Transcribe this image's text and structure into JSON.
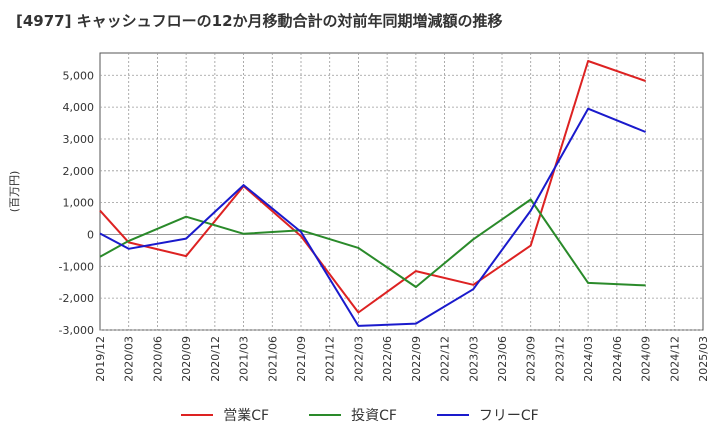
{
  "chart_data": {
    "type": "line",
    "title": "[4977]  キャッシュフローの12か月移動合計の対前年同期増減額の推移",
    "ylabel": "(百万円)",
    "xlabel": "",
    "x": [
      "2019/12",
      "2020/03",
      "2020/06",
      "2020/09",
      "2020/12",
      "2021/03",
      "2021/06",
      "2021/09",
      "2021/12",
      "2022/03",
      "2022/06",
      "2022/09",
      "2022/12",
      "2023/03",
      "2023/06",
      "2023/09",
      "2023/12",
      "2024/03",
      "2024/06",
      "2024/09",
      "2024/12",
      "2025/03"
    ],
    "ylim": [
      -3000,
      5700
    ],
    "yticks": [
      -3000,
      -2000,
      -1000,
      0,
      1000,
      2000,
      3000,
      4000,
      5000
    ],
    "ytick_labels": [
      "-3,000",
      "-2,000",
      "-1,000",
      "0",
      "1,000",
      "2,000",
      "3,000",
      "4,000",
      "5,000"
    ],
    "grid": true,
    "legend_position": "bottom",
    "series": [
      {
        "name": "営業CF",
        "color": "#dd2222",
        "values": [
          750,
          -250,
          null,
          -680,
          null,
          1520,
          null,
          -50,
          null,
          -2450,
          null,
          -1150,
          null,
          -1580,
          null,
          -350,
          null,
          5450,
          null,
          4820,
          null,
          null
        ]
      },
      {
        "name": "投資CF",
        "color": "#2a8a2a",
        "values": [
          -700,
          -200,
          null,
          560,
          null,
          20,
          null,
          130,
          null,
          -420,
          null,
          -1650,
          null,
          -150,
          null,
          1100,
          null,
          -1520,
          null,
          -1600,
          null,
          null
        ]
      },
      {
        "name": "フリーCF",
        "color": "#1a1acc",
        "values": [
          30,
          -450,
          null,
          -130,
          null,
          1550,
          null,
          80,
          null,
          -2870,
          null,
          -2800,
          null,
          -1720,
          null,
          750,
          null,
          3950,
          null,
          3220,
          null,
          null
        ]
      }
    ]
  }
}
